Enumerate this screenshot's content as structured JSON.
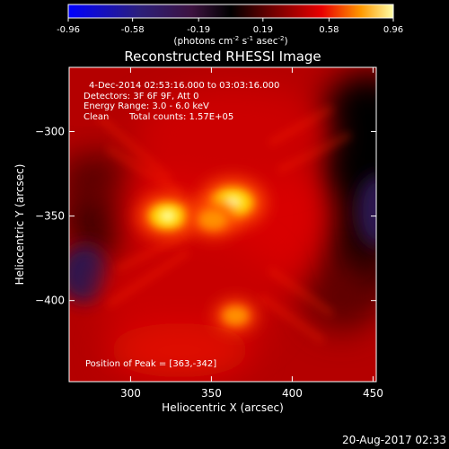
{
  "colorbar": {
    "ticks": [
      "-0.96",
      "-0.58",
      "-0.19",
      "0.19",
      "0.58",
      "0.96"
    ],
    "range": [
      -0.96,
      0.96
    ],
    "unit_prefix": "(photons cm",
    "unit_sup1": "-2",
    "unit_mid": " s",
    "unit_sup2": "-1",
    "unit_mid2": " asec",
    "unit_sup3": "-2",
    "unit_suffix": ")"
  },
  "title": "Reconstructed RHESSI Image",
  "info": {
    "time_range": "4-Dec-2014 02:53:16.000 to 03:03:16.000",
    "detectors": "Detectors: 3F 6F 9F, Att 0",
    "energy": "Energy Range: 3.0 - 6.0 keV",
    "clean": "Clean",
    "total_counts": "Total counts: 1.57E+05"
  },
  "peak_label": "Position of Peak = [363,-342]",
  "timestamp": "20-Aug-2017 02:33",
  "chart_data": {
    "type": "heatmap",
    "title": "Reconstructed RHESSI Image",
    "xlabel": "Heliocentric X (arcsec)",
    "ylabel": "Heliocentric Y (arcsec)",
    "xlim": [
      262,
      452
    ],
    "ylim": [
      -448,
      -262
    ],
    "xticks": [
      300,
      350,
      400,
      450
    ],
    "yticks": [
      -300,
      -350,
      -400
    ],
    "peak": [
      363,
      -342
    ],
    "sources": [
      {
        "x": 363,
        "y": -342,
        "level": 0.96
      },
      {
        "x": 323,
        "y": -350,
        "level": 0.85
      },
      {
        "x": 351,
        "y": -352,
        "level": 0.6
      },
      {
        "x": 365,
        "y": -409,
        "level": 0.5
      }
    ],
    "colormap": [
      "#0000ff",
      "#3a1b5a",
      "#000000",
      "#8c0000",
      "#e60000",
      "#ff9a00",
      "#ffff80"
    ]
  }
}
